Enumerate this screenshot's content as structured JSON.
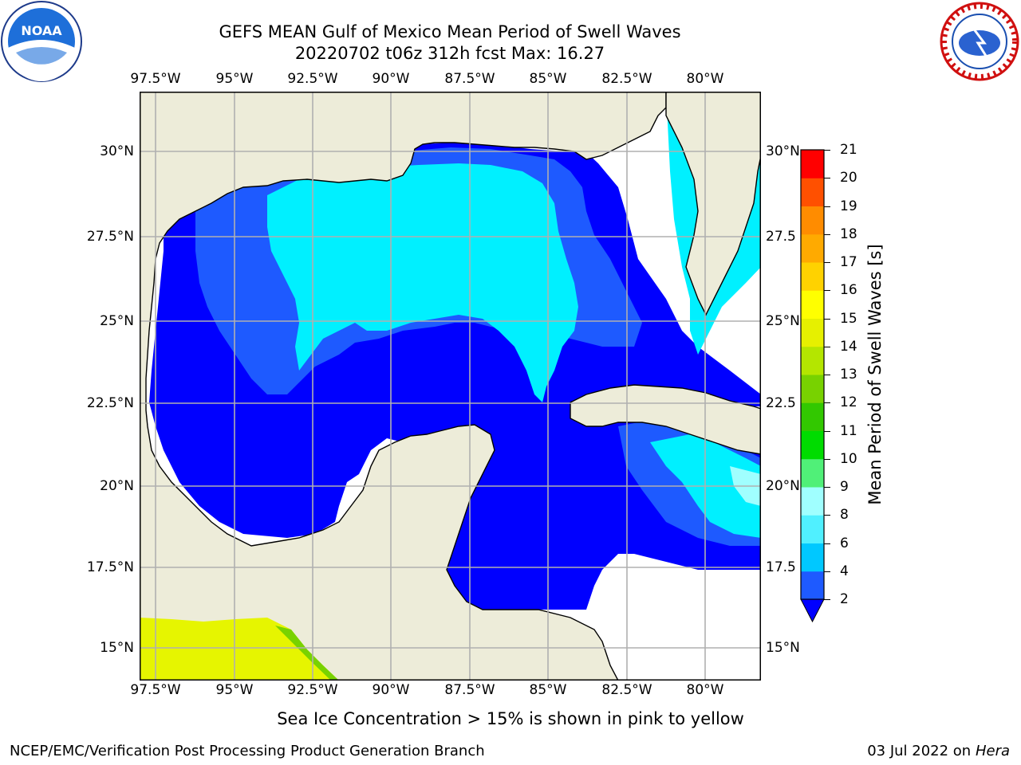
{
  "header": {
    "title_line1": "GEFS MEAN Gulf of Mexico Mean Period of Swell Waves",
    "title_line2": "20220702 t06z 312h fcst   Max: 16.27"
  },
  "logos": {
    "left": "noaa-logo",
    "right": "national-weather-service-logo"
  },
  "map": {
    "lon_labels": [
      "97.5°W",
      "95°W",
      "92.5°W",
      "90°W",
      "87.5°W",
      "85°W",
      "82.5°W",
      "80°W"
    ],
    "lat_labels_left": [
      "30°N",
      "27.5°N",
      "25°N",
      "22.5°N",
      "20°N",
      "17.5°N",
      "15°N"
    ],
    "lat_labels_right": [
      "30°N",
      "27.5",
      "25°N",
      "22.5",
      "20°N",
      "17.5",
      "15°N"
    ],
    "colors": {
      "land": "#edecd9",
      "missing": "#ffffff",
      "grid": "#b0b0b0",
      "coast": "#000000"
    }
  },
  "colorbar": {
    "label": "Mean Period of Swell Waves [s]",
    "ticks": [
      "2",
      "4",
      "6",
      "8",
      "9",
      "10",
      "11",
      "12",
      "13",
      "14",
      "15",
      "16",
      "17",
      "18",
      "19",
      "20",
      "21"
    ],
    "colors": [
      "#1e5aff",
      "#00c8ff",
      "#50f0ff",
      "#a0ffff",
      "#50f078",
      "#00dc00",
      "#32c800",
      "#78d200",
      "#b4e600",
      "#e6f000",
      "#ffff00",
      "#ffd200",
      "#ffaa00",
      "#ff8c00",
      "#ff5000",
      "#ff0000"
    ],
    "under_color": "#0000ff"
  },
  "footer": {
    "sea_ice_note": "Sea Ice Concentration > 15% is shown in pink to yellow",
    "branch": "NCEP/EMC/Verification Post Processing Product Generation Branch",
    "date": "03 Jul 2022 on",
    "host": "Hera"
  }
}
